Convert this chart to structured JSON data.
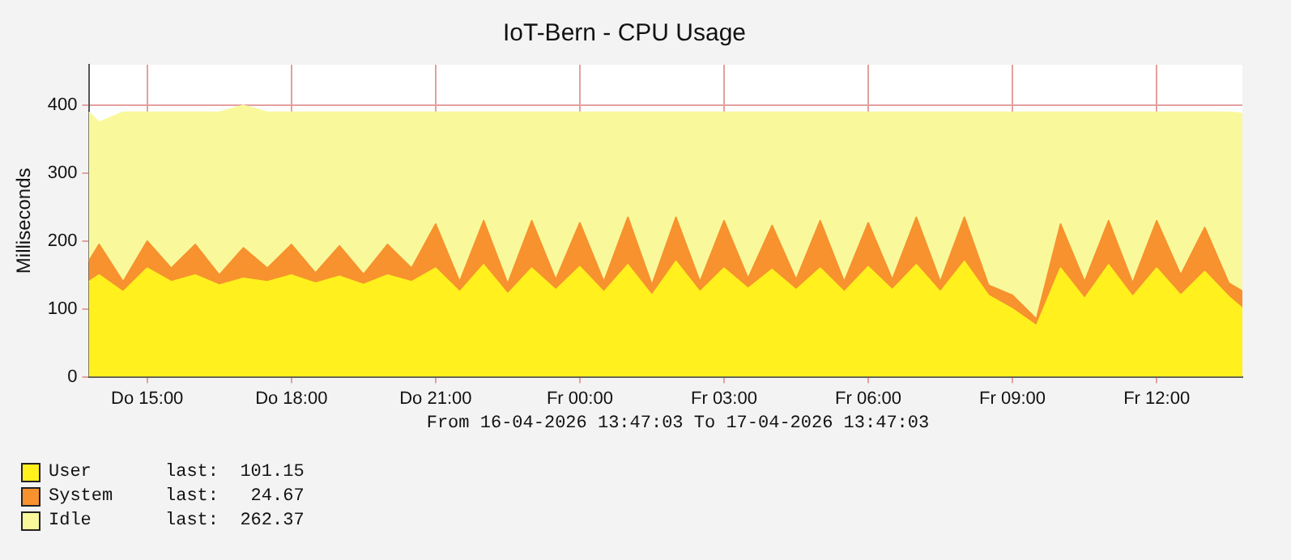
{
  "chart_data": {
    "type": "area",
    "title": "IoT-Bern - CPU Usage",
    "ylabel": "Milliseconds",
    "stacked": true,
    "grid": true,
    "legend": "bottom left",
    "marker": "none",
    "x": [
      "2026-04-16T13:47",
      "2026-04-16T14:00",
      "2026-04-16T14:30",
      "2026-04-16T15:00",
      "2026-04-16T15:30",
      "2026-04-16T16:00",
      "2026-04-16T16:30",
      "2026-04-16T17:00",
      "2026-04-16T17:30",
      "2026-04-16T18:00",
      "2026-04-16T18:30",
      "2026-04-16T19:00",
      "2026-04-16T19:30",
      "2026-04-16T20:00",
      "2026-04-16T20:30",
      "2026-04-16T21:00",
      "2026-04-16T21:30",
      "2026-04-16T22:00",
      "2026-04-16T22:30",
      "2026-04-16T23:00",
      "2026-04-16T23:30",
      "2026-04-17T00:00",
      "2026-04-17T00:30",
      "2026-04-17T01:00",
      "2026-04-17T01:30",
      "2026-04-17T02:00",
      "2026-04-17T02:30",
      "2026-04-17T03:00",
      "2026-04-17T03:30",
      "2026-04-17T04:00",
      "2026-04-17T04:30",
      "2026-04-17T05:00",
      "2026-04-17T05:30",
      "2026-04-17T06:00",
      "2026-04-17T06:30",
      "2026-04-17T07:00",
      "2026-04-17T07:30",
      "2026-04-17T08:00",
      "2026-04-17T08:30",
      "2026-04-17T09:00",
      "2026-04-17T09:30",
      "2026-04-17T10:00",
      "2026-04-17T10:30",
      "2026-04-17T11:00",
      "2026-04-17T11:30",
      "2026-04-17T12:00",
      "2026-04-17T12:30",
      "2026-04-17T13:00",
      "2026-04-17T13:30",
      "2026-04-17T13:47"
    ],
    "xlim": [
      "2026-04-16T13:47",
      "2026-04-17T13:47"
    ],
    "xticks": [
      {
        "value": "2026-04-16T15:00",
        "label": "Do 15:00"
      },
      {
        "value": "2026-04-16T18:00",
        "label": "Do 18:00"
      },
      {
        "value": "2026-04-16T21:00",
        "label": "Do 21:00"
      },
      {
        "value": "2026-04-17T00:00",
        "label": "Fr 00:00"
      },
      {
        "value": "2026-04-17T03:00",
        "label": "Fr 03:00"
      },
      {
        "value": "2026-04-17T06:00",
        "label": "Fr 06:00"
      },
      {
        "value": "2026-04-17T09:00",
        "label": "Fr 09:00"
      },
      {
        "value": "2026-04-17T12:00",
        "label": "Fr 12:00"
      }
    ],
    "ylim": [
      0,
      460
    ],
    "yticks": [
      0,
      100,
      200,
      300,
      400
    ],
    "series": [
      {
        "name": "User",
        "color": "#fff01e",
        "values": [
          140,
          150,
          125,
          160,
          140,
          150,
          135,
          145,
          140,
          150,
          138,
          148,
          136,
          150,
          140,
          160,
          125,
          165,
          122,
          160,
          128,
          162,
          125,
          165,
          120,
          170,
          125,
          160,
          130,
          158,
          128,
          160,
          125,
          162,
          128,
          165,
          125,
          170,
          120,
          100,
          75,
          160,
          115,
          165,
          118,
          160,
          120,
          155,
          118,
          101
        ]
      },
      {
        "name": "System",
        "color": "#f7922e",
        "values": [
          30,
          45,
          15,
          40,
          20,
          45,
          15,
          45,
          20,
          45,
          15,
          45,
          15,
          45,
          20,
          65,
          15,
          65,
          15,
          70,
          15,
          65,
          15,
          70,
          15,
          65,
          15,
          70,
          15,
          65,
          15,
          70,
          15,
          65,
          15,
          70,
          15,
          65,
          15,
          20,
          10,
          65,
          25,
          65,
          20,
          70,
          30,
          65,
          20,
          25
        ]
      },
      {
        "name": "Idle",
        "color": "#f9f99c",
        "values": [
          220,
          180,
          250,
          190,
          230,
          195,
          240,
          210,
          230,
          195,
          237,
          197,
          239,
          195,
          230,
          165,
          250,
          160,
          253,
          160,
          247,
          163,
          250,
          155,
          255,
          155,
          250,
          160,
          245,
          167,
          247,
          160,
          250,
          163,
          247,
          155,
          250,
          155,
          255,
          270,
          305,
          165,
          250,
          160,
          252,
          160,
          240,
          170,
          252,
          262
        ]
      }
    ],
    "annotations": [
      "From 16-04-2026 13:47:03 To 17-04-2026 13:47:03",
      "last:  101.15",
      "last:   24.67",
      "last:  262.37"
    ]
  }
}
